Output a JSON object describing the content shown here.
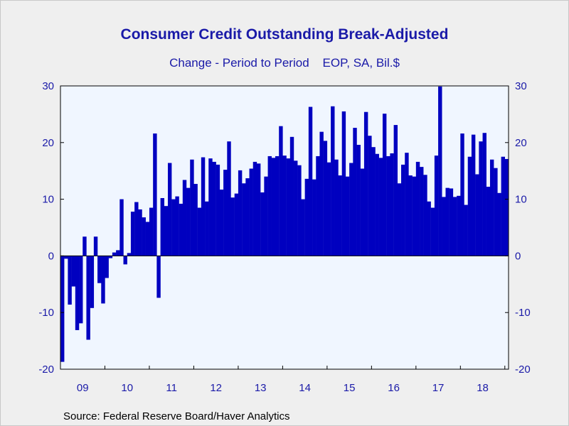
{
  "header": {
    "title": "Consumer Credit Outstanding Break-Adjusted",
    "subtitle": "Change - Period to Period    EOP, SA, Bil.$"
  },
  "footer": {
    "source": "Source:  Federal Reserve Board/Haver Analytics"
  },
  "colors": {
    "bar": "#0000c0",
    "plot_background": "#f0f6ff",
    "page_background": "#efefef",
    "text": "#1a1aa8"
  },
  "chart_data": {
    "type": "bar",
    "title": "Consumer Credit Outstanding Break-Adjusted",
    "subtitle": "Change - Period to Period    EOP, SA, Bil.$",
    "frequency": "monthly",
    "start": "2009-01",
    "xlabel": "",
    "ylabel": "",
    "ylim": [
      -20,
      30
    ],
    "yticks": [
      -20,
      -10,
      0,
      10,
      20,
      30
    ],
    "x_tick_labels": [
      "09",
      "10",
      "11",
      "12",
      "13",
      "14",
      "15",
      "16",
      "17",
      "18"
    ],
    "dual_y_axis": true,
    "grid": false,
    "legend": "none",
    "values": [
      -18.7,
      -0.5,
      -8.6,
      -5.4,
      -13.1,
      -11.9,
      3.4,
      -14.8,
      -9.2,
      3.4,
      -4.8,
      -8.4,
      -3.9,
      -0.4,
      0.6,
      1.0,
      10.0,
      -1.5,
      0.5,
      7.8,
      9.5,
      8.2,
      6.8,
      6.0,
      8.5,
      21.6,
      -7.4,
      10.2,
      8.8,
      16.4,
      10.0,
      10.5,
      9.2,
      13.4,
      12.0,
      17.0,
      12.7,
      8.5,
      17.4,
      9.6,
      17.2,
      16.6,
      16.1,
      11.7,
      15.2,
      20.2,
      10.3,
      11.0,
      15.1,
      12.8,
      13.7,
      15.4,
      16.6,
      16.3,
      11.2,
      14.0,
      17.6,
      17.3,
      17.6,
      22.9,
      17.7,
      17.2,
      21.0,
      16.8,
      16.0,
      10.0,
      13.6,
      26.3,
      13.5,
      17.6,
      21.9,
      20.3,
      16.5,
      26.4,
      17.0,
      14.2,
      25.5,
      14.0,
      16.4,
      22.6,
      19.6,
      15.4,
      25.4,
      21.2,
      19.2,
      18.0,
      17.3,
      25.1,
      17.6,
      18.1,
      23.1,
      12.8,
      16.1,
      18.2,
      14.2,
      14.0,
      16.6,
      15.7,
      14.3,
      9.6,
      8.5,
      17.7,
      29.9,
      10.4,
      12.0,
      11.9,
      10.4,
      10.6,
      21.6,
      9.0,
      17.5,
      21.4,
      14.4,
      20.2,
      21.7,
      12.2,
      17.0,
      15.5,
      11.1,
      17.5,
      17.1
    ]
  }
}
